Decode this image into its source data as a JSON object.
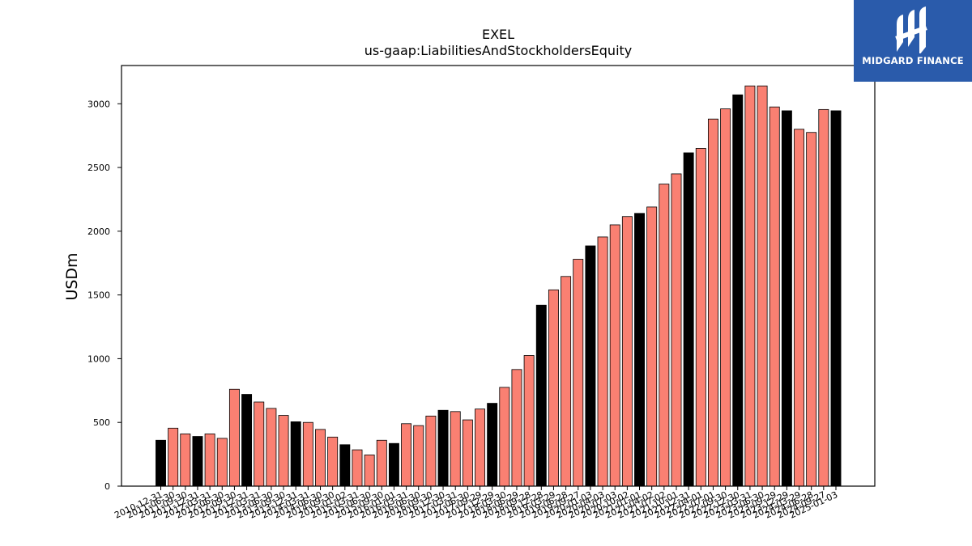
{
  "chart_data": {
    "type": "bar",
    "title": "EXEL",
    "subtitle": "us-gaap:LiabilitiesAndStockholdersEquity",
    "xlabel": "",
    "ylabel": "USDm",
    "ylim": [
      0,
      3300
    ],
    "yticks": [
      0,
      500,
      1000,
      1500,
      2000,
      2500,
      3000
    ],
    "grid": false,
    "colors": {
      "annual": "#000000",
      "quarterly": "#fa8072",
      "edge": "#000000"
    },
    "categories": [
      "2010-12-31",
      "2011-06-30",
      "2011-09-30",
      "2011-12-31",
      "2012-03-31",
      "2012-06-30",
      "2012-09-30",
      "2012-12-31",
      "2013-03-31",
      "2013-06-30",
      "2013-09-30",
      "2013-12-31",
      "2014-03-31",
      "2014-06-30",
      "2014-09-30",
      "2015-01-02",
      "2015-03-31",
      "2015-06-30",
      "2015-09-30",
      "2016-01-01",
      "2016-03-31",
      "2016-06-30",
      "2016-09-30",
      "2016-12-30",
      "2017-03-31",
      "2017-06-30",
      "2017-09-29",
      "2017-12-29",
      "2018-03-30",
      "2018-06-29",
      "2018-09-28",
      "2018-12-28",
      "2019-03-29",
      "2019-06-28",
      "2019-09-27",
      "2020-01-03",
      "2020-04-03",
      "2020-07-03",
      "2020-10-02",
      "2021-01-01",
      "2021-04-02",
      "2021-07-02",
      "2021-10-01",
      "2021-12-31",
      "2022-04-01",
      "2022-07-01",
      "2022-09-30",
      "2022-12-30",
      "2023-03-31",
      "2023-06-30",
      "2023-09-29",
      "2023-12-29",
      "2024-03-29",
      "2024-06-28",
      "2024-09-27",
      "2025-01-03"
    ],
    "values": [
      360,
      455,
      410,
      390,
      410,
      375,
      760,
      720,
      660,
      610,
      555,
      505,
      500,
      445,
      385,
      325,
      285,
      245,
      360,
      335,
      490,
      475,
      550,
      595,
      585,
      520,
      605,
      650,
      775,
      915,
      1025,
      1420,
      1540,
      1645,
      1780,
      1885,
      1955,
      2050,
      2115,
      2140,
      2190,
      2370,
      2450,
      2615,
      2650,
      2880,
      2960,
      3070,
      3140,
      3140,
      2975,
      2945,
      2800,
      2775,
      2955,
      2945
    ],
    "annual": [
      1,
      0,
      0,
      1,
      0,
      0,
      0,
      1,
      0,
      0,
      0,
      1,
      0,
      0,
      0,
      1,
      0,
      0,
      0,
      1,
      0,
      0,
      0,
      1,
      0,
      0,
      0,
      1,
      0,
      0,
      0,
      1,
      0,
      0,
      0,
      1,
      0,
      0,
      0,
      1,
      0,
      0,
      0,
      1,
      0,
      0,
      0,
      1,
      0,
      0,
      0,
      1,
      0,
      0,
      0,
      1
    ]
  },
  "logo": {
    "text": "MIDGARD FINANCE",
    "icon": "midgard-logo-icon"
  }
}
